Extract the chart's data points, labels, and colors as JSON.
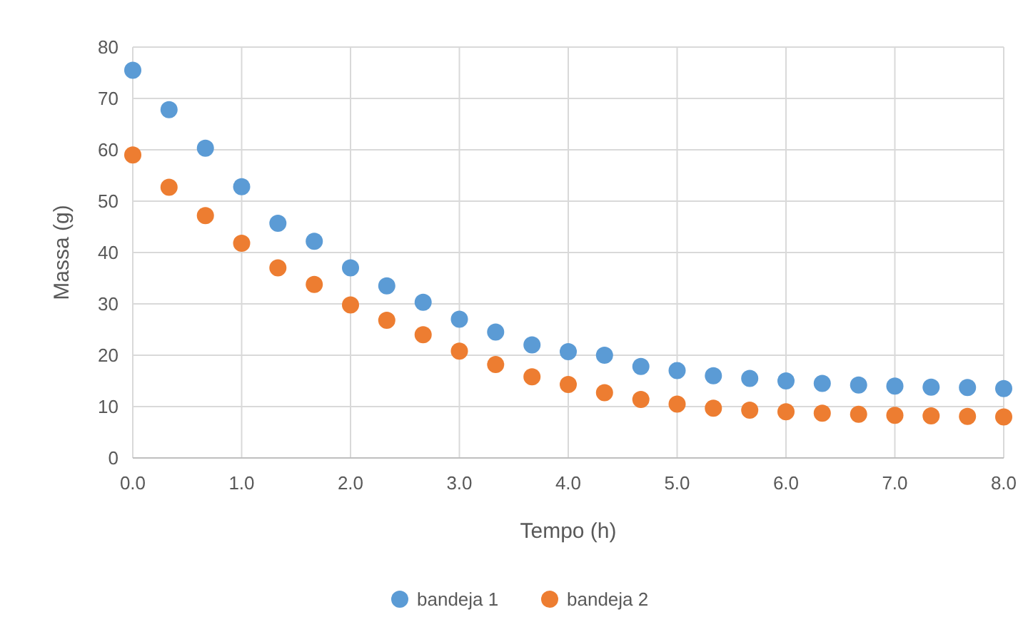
{
  "chart_data": {
    "type": "scatter",
    "xlabel": "Tempo (h)",
    "ylabel": "Massa (g)",
    "x": [
      0,
      0.333,
      0.667,
      1,
      1.333,
      1.667,
      2,
      2.333,
      2.667,
      3,
      3.333,
      3.667,
      4,
      4.333,
      4.667,
      5,
      5.333,
      5.667,
      6,
      6.333,
      6.667,
      7,
      7.333,
      7.667,
      8
    ],
    "series": [
      {
        "name": "bandeja 1",
        "color": "#5b9bd5",
        "values": [
          75.5,
          67.8,
          60.3,
          52.8,
          45.7,
          42.2,
          37.0,
          33.5,
          30.3,
          27.0,
          24.5,
          22.0,
          20.7,
          20.0,
          17.8,
          17.0,
          16.0,
          15.5,
          15.0,
          14.5,
          14.2,
          14.0,
          13.8,
          13.7,
          13.5
        ]
      },
      {
        "name": "bandeja 2",
        "color": "#ed7d31",
        "values": [
          59.0,
          52.7,
          47.2,
          41.8,
          37.0,
          33.8,
          29.8,
          26.8,
          24.0,
          20.8,
          18.2,
          15.8,
          14.3,
          12.7,
          11.4,
          10.5,
          9.7,
          9.3,
          9.0,
          8.7,
          8.5,
          8.3,
          8.2,
          8.1,
          8.0
        ]
      }
    ],
    "xlim": [
      0,
      8
    ],
    "xticks": [
      {
        "value": 0,
        "label": "0.0"
      },
      {
        "value": 1,
        "label": "1.0"
      },
      {
        "value": 2,
        "label": "2.0"
      },
      {
        "value": 3,
        "label": "3.0"
      },
      {
        "value": 4,
        "label": "4.0"
      },
      {
        "value": 5,
        "label": "5.0"
      },
      {
        "value": 6,
        "label": "6.0"
      },
      {
        "value": 7,
        "label": "7.0"
      },
      {
        "value": 8,
        "label": "8.0"
      }
    ],
    "ylim": [
      0,
      80
    ],
    "yticks": [
      0,
      10,
      20,
      30,
      40,
      50,
      60,
      70,
      80
    ],
    "grid": true,
    "legend": "bottom",
    "marker": "circle"
  }
}
